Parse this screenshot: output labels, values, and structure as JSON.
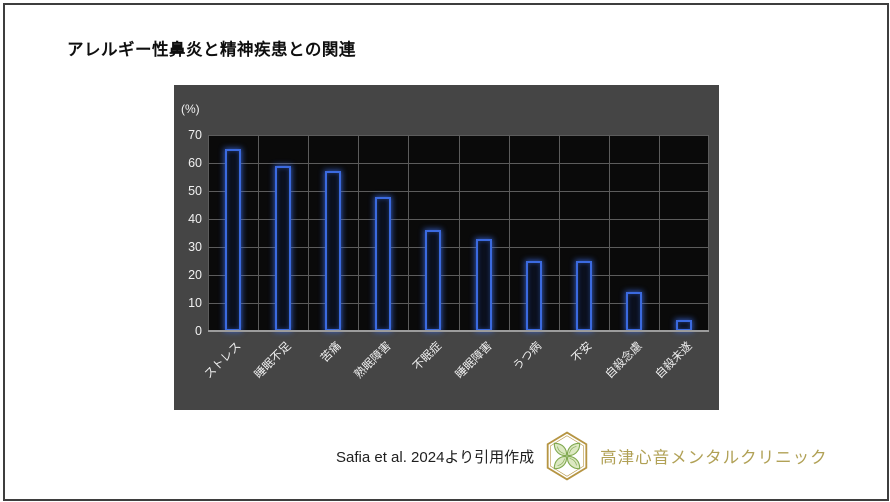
{
  "page": {
    "title": "アレルギー性鼻炎と精神疾患との関連"
  },
  "footer": {
    "citation": "Safia et al. 2024より引用作成",
    "clinic_name": "高津心音メンタルクリニック",
    "logo_icon": "hexagon-clover-logo",
    "clinic_name_color": "#b1a156",
    "logo_gold_color": "#b69543",
    "logo_green_color": "#7fa84e"
  },
  "chart_data": {
    "type": "bar",
    "title": "アレルギー性鼻炎と精神疾患との関連",
    "y_unit_label": "(%)",
    "categories": [
      "ストレス",
      "睡眠不足",
      "苦痛",
      "熟眠障害",
      "不眠症",
      "睡眠障害",
      "うつ病",
      "不安",
      "自殺念慮",
      "自殺未遂"
    ],
    "values": [
      65,
      59,
      57,
      48,
      36,
      33,
      25,
      25,
      14,
      4
    ],
    "xlabel": "",
    "ylabel": "(%)",
    "ylim": [
      0,
      70
    ],
    "yticks": [
      0,
      10,
      20,
      30,
      40,
      50,
      60,
      70
    ],
    "grid": true,
    "legend": false,
    "colors": {
      "panel_bg": "#454545",
      "plot_bg": "#0a0a0a",
      "gridline": "#5c5c5c",
      "axis_line": "#9c9c9c",
      "bar_outline": "#3b6ae0",
      "bar_fill": "#0b101d",
      "tick_label": "#f0f0f0",
      "title_color": "#0f0f0f"
    }
  }
}
